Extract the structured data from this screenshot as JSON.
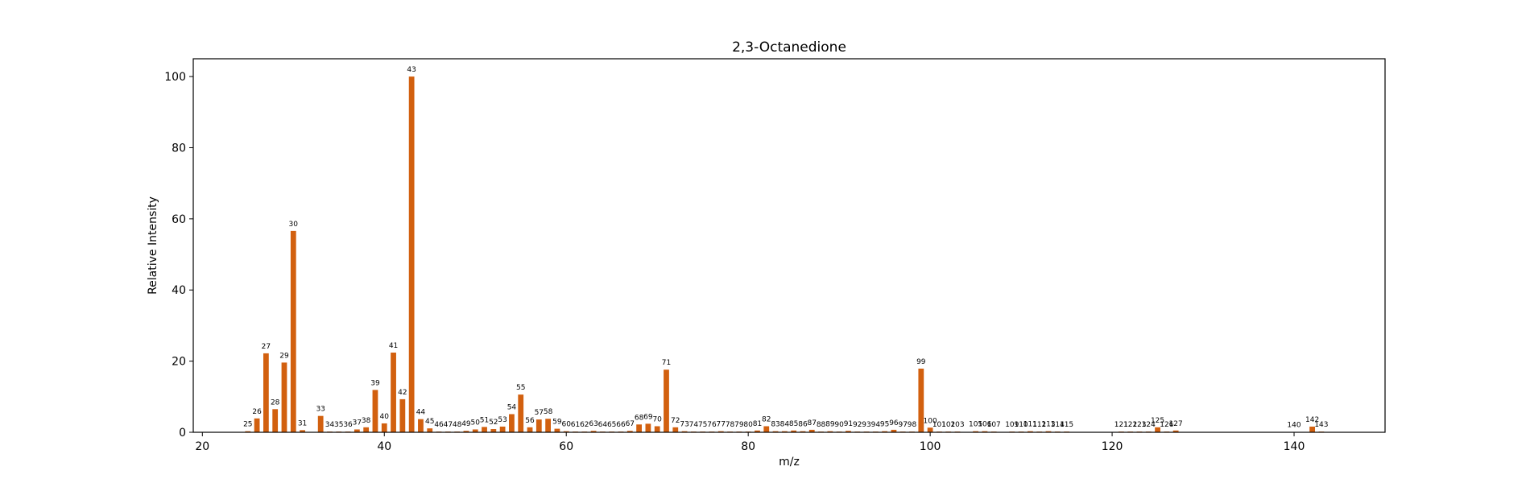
{
  "chart_data": {
    "type": "bar",
    "title": "2,3-Octanedione",
    "xlabel": "m/z",
    "ylabel": "Relative Intensity",
    "xlim": [
      19,
      150
    ],
    "ylim": [
      0,
      105
    ],
    "xticks": [
      20,
      40,
      60,
      80,
      100,
      120,
      140
    ],
    "yticks": [
      0,
      20,
      40,
      60,
      80,
      100
    ],
    "bar_color": "#d2600f",
    "grid": false,
    "legend": "none",
    "x": [
      25,
      26,
      27,
      28,
      29,
      30,
      31,
      33,
      34,
      35,
      36,
      37,
      38,
      39,
      40,
      41,
      42,
      43,
      44,
      45,
      46,
      47,
      48,
      49,
      50,
      51,
      52,
      53,
      54,
      55,
      56,
      57,
      58,
      59,
      60,
      61,
      62,
      63,
      64,
      65,
      66,
      67,
      68,
      69,
      70,
      71,
      72,
      73,
      74,
      75,
      76,
      77,
      78,
      79,
      80,
      81,
      82,
      83,
      84,
      85,
      86,
      87,
      88,
      89,
      90,
      91,
      92,
      93,
      94,
      95,
      96,
      97,
      98,
      99,
      100,
      101,
      102,
      103,
      105,
      106,
      107,
      109,
      110,
      111,
      112,
      113,
      114,
      115,
      121,
      122,
      123,
      124,
      125,
      126,
      127,
      140,
      142,
      143
    ],
    "values": [
      0.3,
      3.9,
      22.2,
      6.5,
      19.6,
      56.6,
      0.6,
      4.6,
      0.2,
      0.2,
      0.2,
      0.8,
      1.4,
      11.9,
      2.5,
      22.4,
      9.3,
      100,
      3.7,
      1.1,
      0.2,
      0.2,
      0.2,
      0.4,
      0.8,
      1.5,
      0.9,
      1.6,
      5.1,
      10.6,
      1.4,
      3.6,
      3.8,
      1.0,
      0.3,
      0.2,
      0.2,
      0.4,
      0.2,
      0.2,
      0.2,
      0.4,
      2.2,
      2.4,
      1.7,
      17.6,
      1.4,
      0.3,
      0.2,
      0.2,
      0.2,
      0.3,
      0.2,
      0.2,
      0.2,
      0.5,
      1.7,
      0.3,
      0.3,
      0.5,
      0.3,
      0.7,
      0.2,
      0.3,
      0.2,
      0.4,
      0.2,
      0.2,
      0.2,
      0.3,
      0.7,
      0.2,
      0.2,
      17.9,
      1.3,
      0.2,
      0.2,
      0.2,
      0.3,
      0.3,
      0.2,
      0.2,
      0.2,
      0.3,
      0.2,
      0.3,
      0.2,
      0.2,
      0.2,
      0.2,
      0.2,
      0.2,
      1.4,
      0.2,
      0.5,
      0.1,
      1.6,
      0.2
    ]
  }
}
